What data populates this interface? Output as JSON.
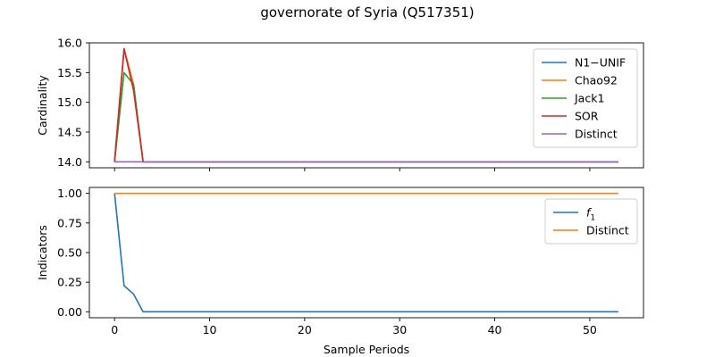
{
  "figure": {
    "title": "governorate of Syria (Q517351)"
  },
  "chart_data": [
    {
      "type": "line",
      "ylabel": "Cardinality",
      "xlabel": "",
      "xlim": [
        -2.65,
        55.65
      ],
      "ylim": [
        13.9,
        16.0
      ],
      "xticks": [
        0,
        10,
        20,
        30,
        40,
        50
      ],
      "yticks": [
        14.0,
        14.5,
        15.0,
        15.5,
        16.0
      ],
      "ytick_labels": [
        "14.0",
        "14.5",
        "15.0",
        "15.5",
        "16.0"
      ],
      "show_xtick_labels": false,
      "grid": false,
      "legend_position": "upper right",
      "x_range": [
        0,
        53
      ],
      "series": [
        {
          "name": "N1−UNIF",
          "color": "#1f77b4",
          "head": [
            14.0,
            15.9,
            15.3,
            14.0
          ],
          "tail_value": 14.0
        },
        {
          "name": "Chao92",
          "color": "#ff7f0e",
          "head": [
            14.0,
            15.9,
            15.3,
            14.0
          ],
          "tail_value": 14.0
        },
        {
          "name": "Jack1",
          "color": "#2ca02c",
          "head": [
            14.0,
            15.5,
            15.3,
            14.0
          ],
          "tail_value": 14.0
        },
        {
          "name": "SOR",
          "color": "#d62728",
          "head": [
            14.0,
            15.9,
            15.2,
            14.0
          ],
          "tail_value": 14.0
        },
        {
          "name": "Distinct",
          "color": "#9467bd",
          "head": [
            14.0,
            14.0,
            14.0,
            14.0
          ],
          "tail_value": 14.0
        }
      ]
    },
    {
      "type": "line",
      "ylabel": "Indicators",
      "xlabel": "Sample Periods",
      "xlim": [
        -2.65,
        55.65
      ],
      "ylim": [
        -0.05,
        1.05
      ],
      "xticks": [
        0,
        10,
        20,
        30,
        40,
        50
      ],
      "xtick_labels": [
        "0",
        "10",
        "20",
        "30",
        "40",
        "50"
      ],
      "yticks": [
        0.0,
        0.25,
        0.5,
        0.75,
        1.0
      ],
      "ytick_labels": [
        "0.00",
        "0.25",
        "0.50",
        "0.75",
        "1.00"
      ],
      "show_xtick_labels": true,
      "grid": false,
      "legend_position": "upper right",
      "x_range": [
        0,
        53
      ],
      "series": [
        {
          "name": "f",
          "name_subscript": "1",
          "color": "#1f77b4",
          "head": [
            1.0,
            0.22,
            0.15,
            0.0
          ],
          "tail_value": 0.0
        },
        {
          "name": "Distinct",
          "color": "#ff7f0e",
          "head": [
            1.0,
            1.0,
            1.0,
            1.0
          ],
          "tail_value": 1.0
        }
      ]
    }
  ]
}
